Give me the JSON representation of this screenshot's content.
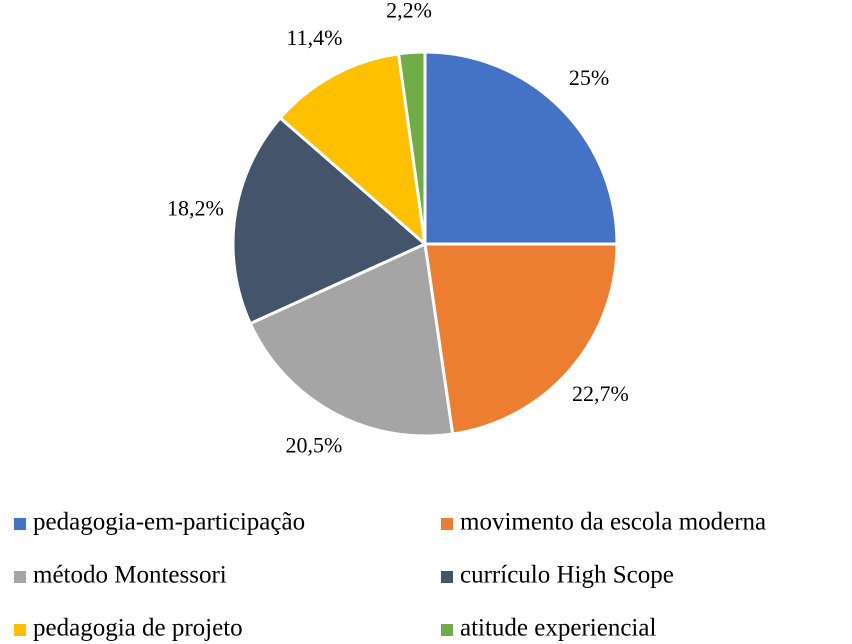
{
  "chart_data": {
    "type": "pie",
    "categories": [
      "pedagogia-em-participação",
      "movimento da escola moderna",
      "método Montessori",
      "currículo High Scope",
      "pedagogia de projeto",
      "atitude experiencial"
    ],
    "values": [
      25,
      22.7,
      20.5,
      18.2,
      11.4,
      2.2
    ],
    "value_labels": [
      "25%",
      "22,7%",
      "20,5%",
      "18,2%",
      "11,4%",
      "2,2%"
    ],
    "colors": [
      "#4472c4",
      "#ed7d31",
      "#a5a5a5",
      "#44546a",
      "#ffc000",
      "#70ad47"
    ],
    "legend": "bottom"
  }
}
